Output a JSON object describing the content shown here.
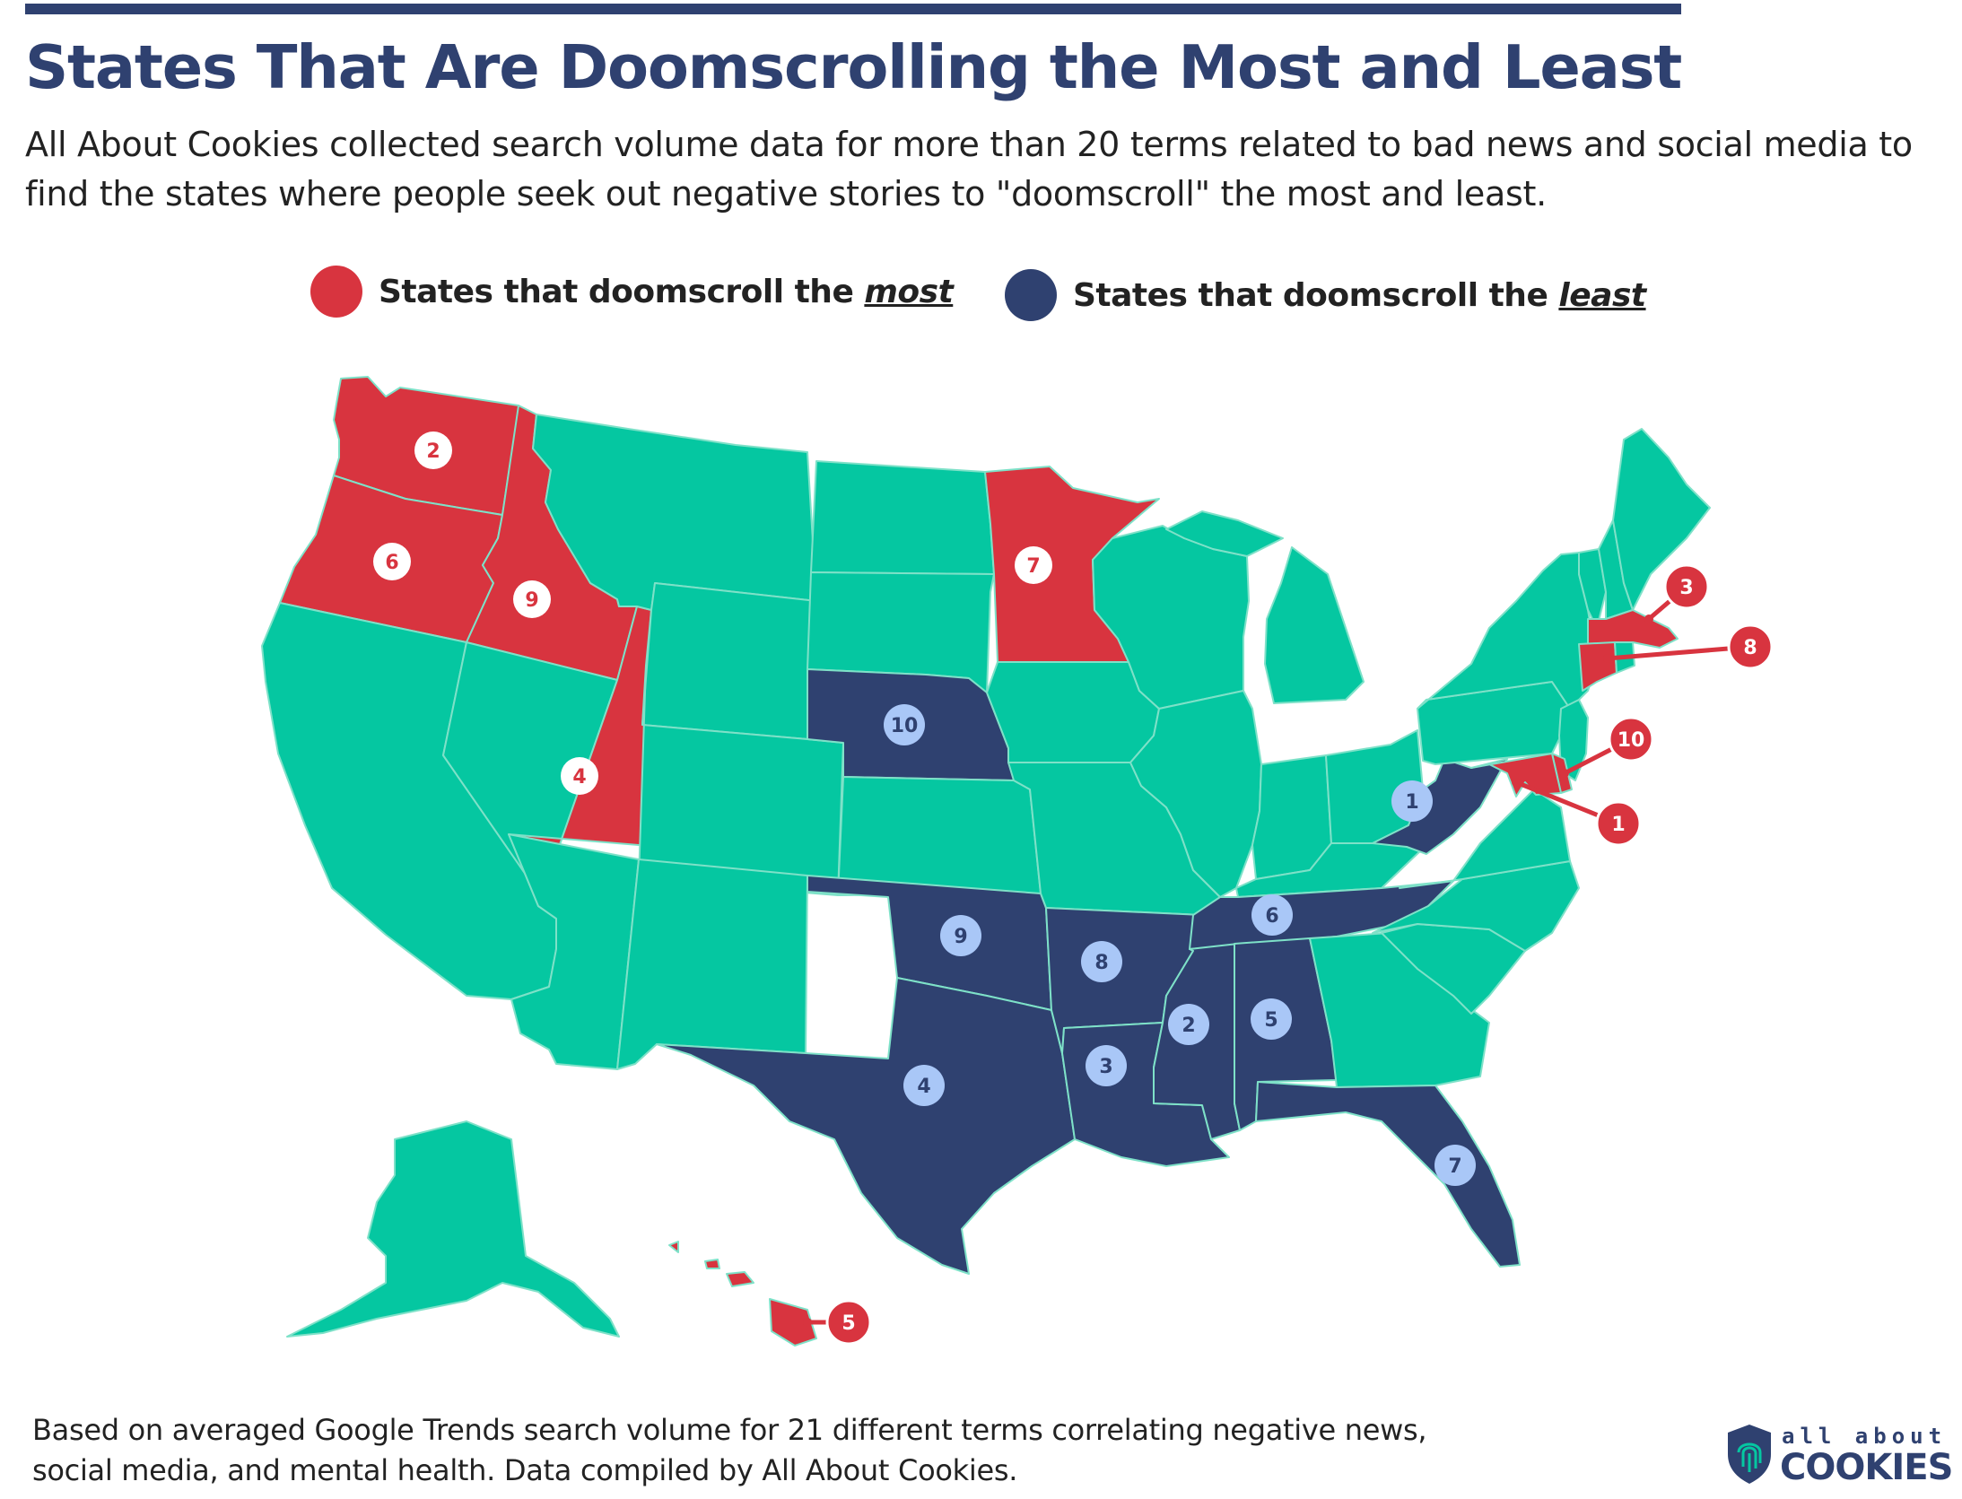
{
  "title": "States That Are Doomscrolling the Most and Least",
  "subtitle": "All About Cookies collected search volume data for more than 20 terms related to bad news and social media to find the states where people seek out negative stories to \"doomscroll\" the most and least.",
  "legend": {
    "most": {
      "prefix": "States that doomscroll the ",
      "emph": "most",
      "color": "#d8343f"
    },
    "least": {
      "prefix": "States that doomscroll the ",
      "emph": "least",
      "color": "#2f4170"
    }
  },
  "colors": {
    "neutral": "#05c7a1",
    "most": "#d8343f",
    "least": "#2f4170",
    "least_badge": "#a9c7f7",
    "border": "#7ee1c8"
  },
  "states_most": [
    {
      "state": "Maryland",
      "rank": "1"
    },
    {
      "state": "Washington",
      "rank": "2"
    },
    {
      "state": "Massachusetts",
      "rank": "3"
    },
    {
      "state": "Utah",
      "rank": "4"
    },
    {
      "state": "Hawaii",
      "rank": "5"
    },
    {
      "state": "Oregon",
      "rank": "6"
    },
    {
      "state": "Minnesota",
      "rank": "7"
    },
    {
      "state": "Connecticut",
      "rank": "8"
    },
    {
      "state": "Idaho",
      "rank": "9"
    },
    {
      "state": "Delaware",
      "rank": "10"
    }
  ],
  "states_least": [
    {
      "state": "West Virginia",
      "rank": "1"
    },
    {
      "state": "Mississippi",
      "rank": "2"
    },
    {
      "state": "Louisiana",
      "rank": "3"
    },
    {
      "state": "Texas",
      "rank": "4"
    },
    {
      "state": "Alabama",
      "rank": "5"
    },
    {
      "state": "Tennessee",
      "rank": "6"
    },
    {
      "state": "Florida",
      "rank": "7"
    },
    {
      "state": "Arkansas",
      "rank": "8"
    },
    {
      "state": "Oklahoma",
      "rank": "9"
    },
    {
      "state": "Nebraska",
      "rank": "10"
    }
  ],
  "footnote": "Based on averaged Google Trends search volume for 21 different terms correlating negative news, social media, and mental health. Data compiled by All About Cookies.",
  "logo": {
    "small": "all about",
    "big": "COOKIES",
    "icon": "fingerprint-shield-icon"
  }
}
